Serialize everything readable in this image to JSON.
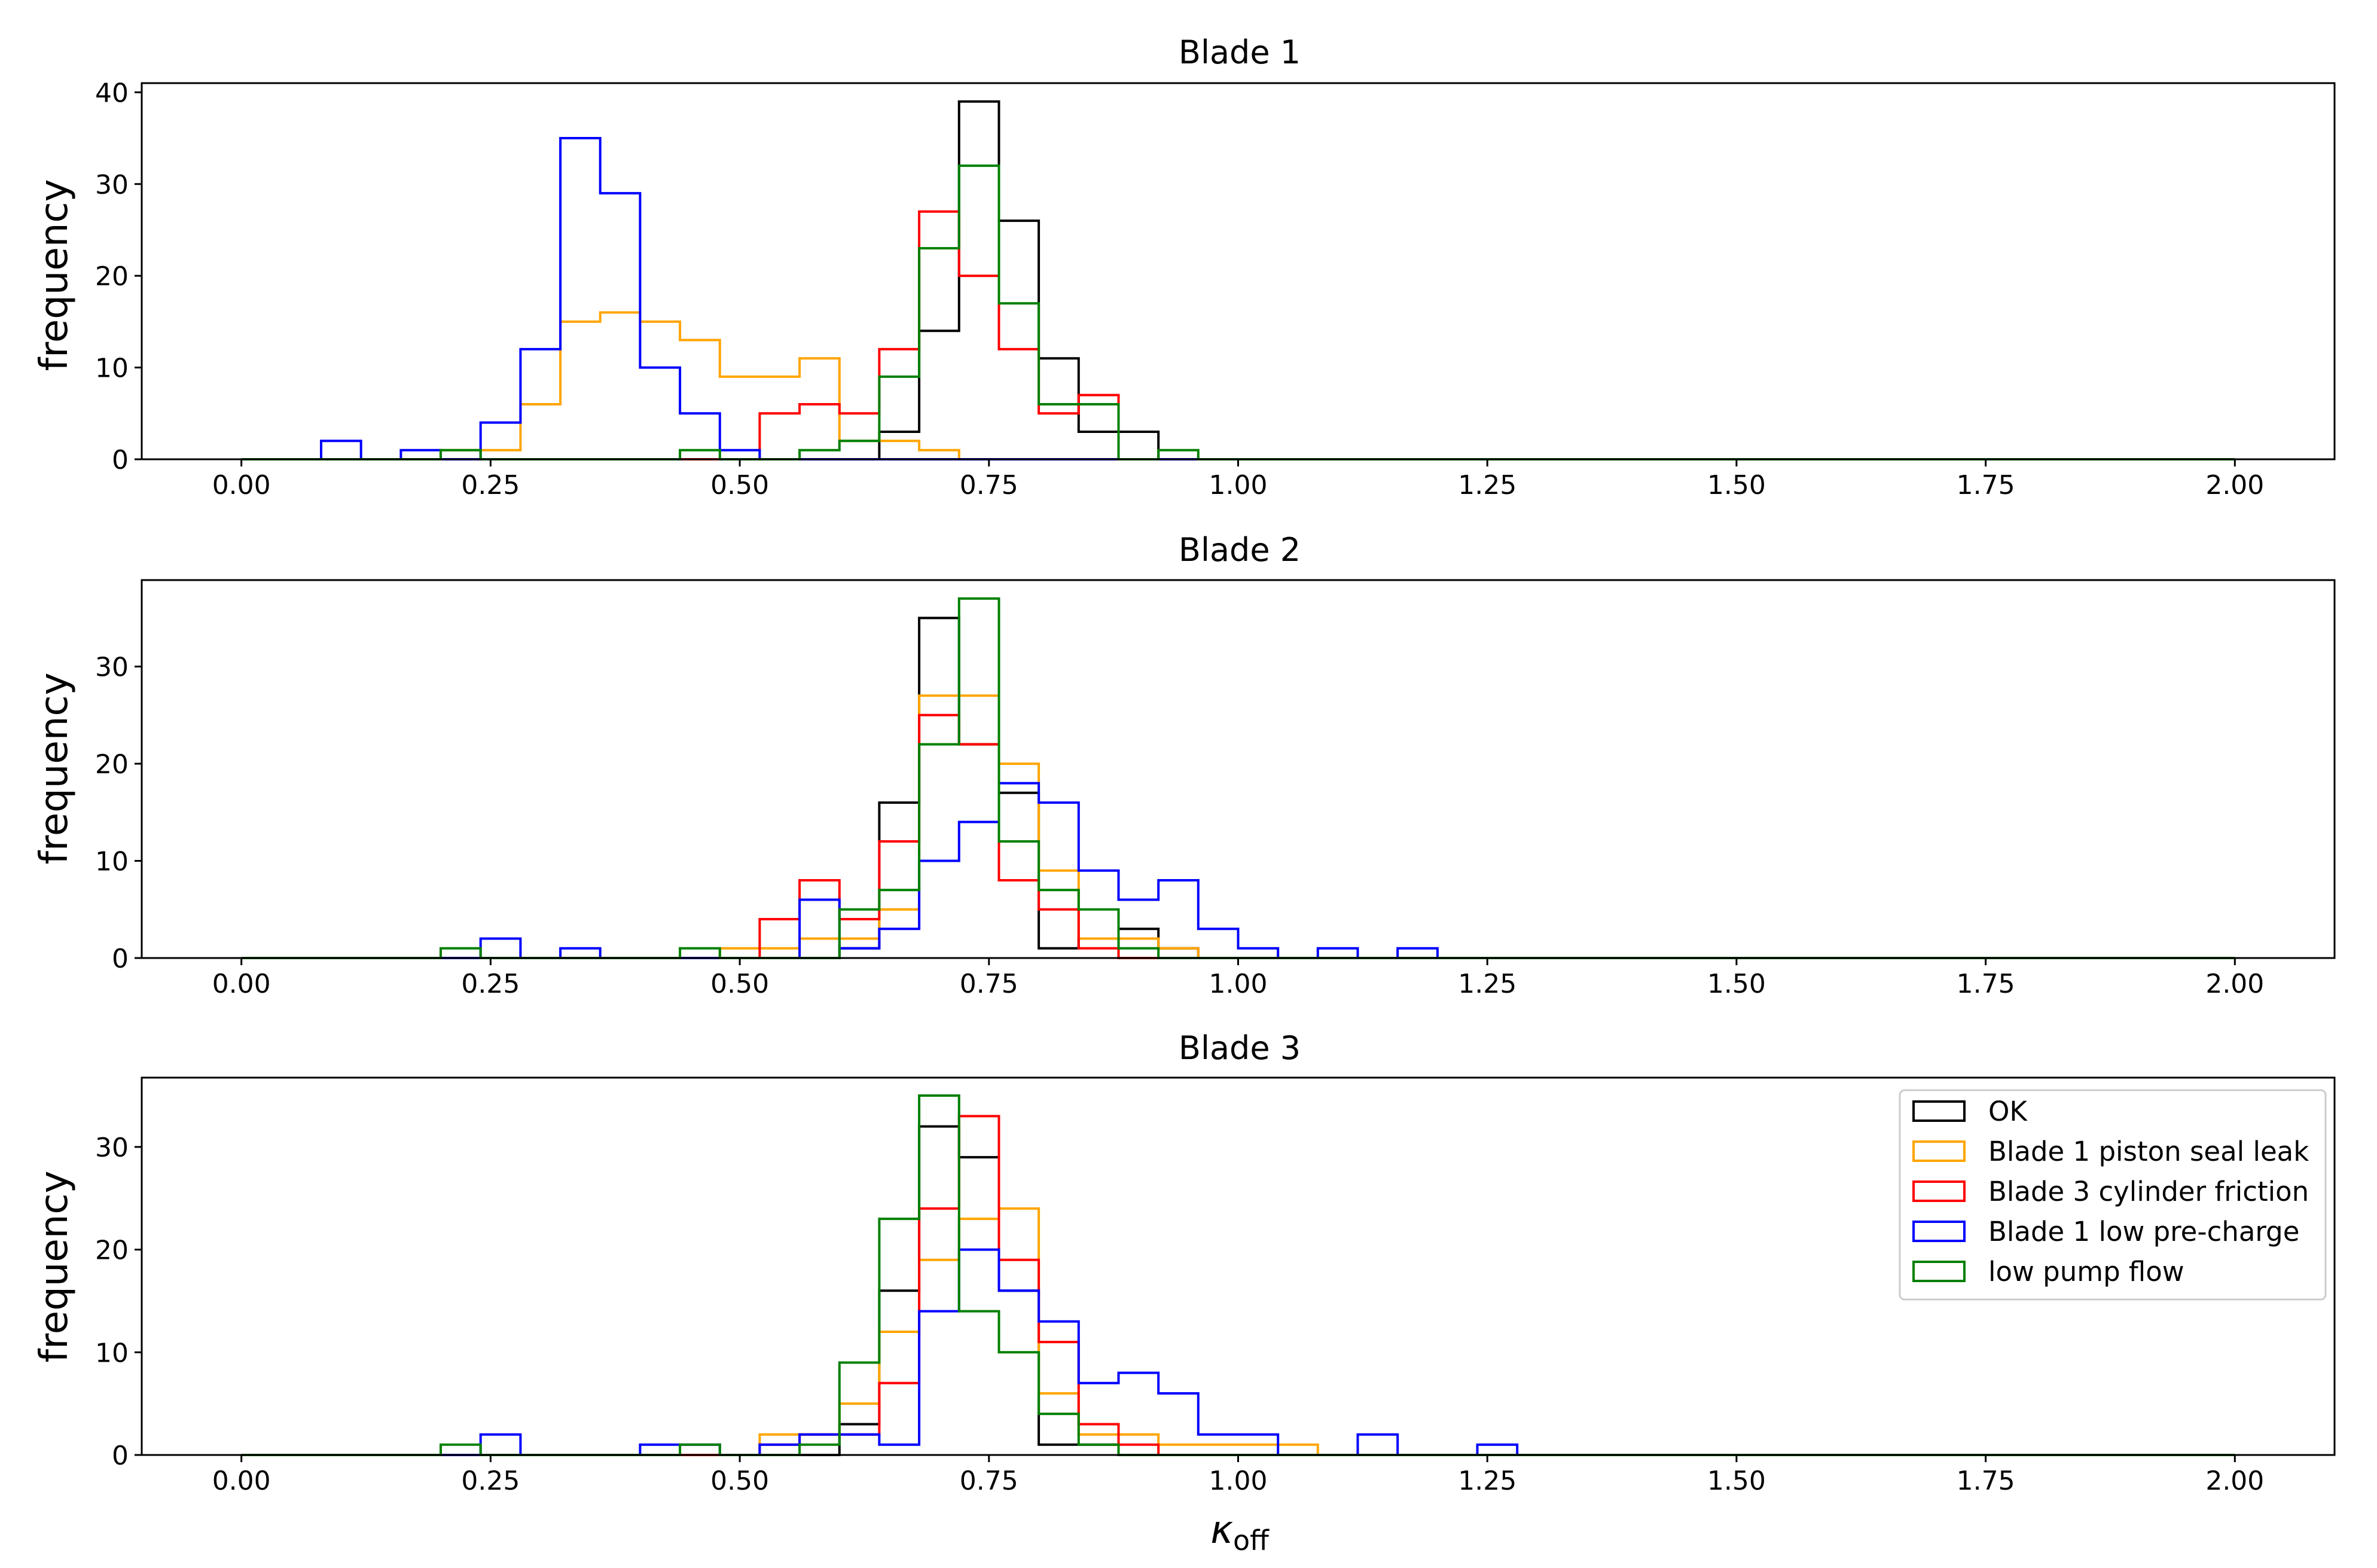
{
  "figure": {
    "xlabel_main": "κ",
    "xlabel_sub": "off"
  },
  "legend": [
    {
      "label": "OK",
      "color": "#000000"
    },
    {
      "label": "Blade 1 piston seal leak",
      "color": "#FFA500"
    },
    {
      "label": "Blade 3 cylinder friction",
      "color": "#FF0000"
    },
    {
      "label": "Blade 1 low pre-charge",
      "color": "#0000FF"
    },
    {
      "label": "low pump flow",
      "color": "#008000"
    }
  ],
  "chart_data": [
    {
      "type": "histogram",
      "title": "Blade 1",
      "ylabel": "frequency",
      "xlabel": "",
      "xlim": [
        -0.1,
        2.1
      ],
      "ylim": [
        0,
        41
      ],
      "yticks": [
        0,
        10,
        20,
        30,
        40
      ],
      "xticks": [
        "0.00",
        "0.25",
        "0.50",
        "0.75",
        "1.00",
        "1.25",
        "1.50",
        "1.75",
        "2.00"
      ],
      "bin_width": 0.04,
      "series": [
        {
          "name": "OK",
          "color": "#000000",
          "start": 0.0,
          "values": [
            0,
            0,
            0,
            0,
            0,
            0,
            0,
            0,
            0,
            0,
            0,
            0,
            0,
            0,
            0,
            0,
            3,
            14,
            39,
            26,
            11,
            3,
            3,
            0,
            0
          ]
        },
        {
          "name": "Blade 1 piston seal leak",
          "color": "#FFA500",
          "start": 0.2,
          "values": [
            1,
            1,
            6,
            15,
            16,
            15,
            13,
            9,
            9,
            11,
            2,
            2,
            1
          ]
        },
        {
          "name": "Blade 3 cylinder friction",
          "color": "#FF0000",
          "start": 0.52,
          "values": [
            5,
            6,
            5,
            12,
            27,
            20,
            12,
            5,
            7
          ]
        },
        {
          "name": "Blade 1 low pre-charge",
          "color": "#0000FF",
          "start": 0.08,
          "values": [
            2,
            0,
            1,
            0,
            4,
            12,
            35,
            29,
            10,
            5,
            1
          ]
        },
        {
          "name": "low pump flow",
          "color": "#008000",
          "start": 0.2,
          "values": [
            1,
            0,
            0,
            0,
            0,
            0,
            1,
            0,
            0,
            1,
            2,
            9,
            23,
            32,
            17,
            6,
            6,
            0,
            1
          ]
        }
      ]
    },
    {
      "type": "histogram",
      "title": "Blade 2",
      "ylabel": "frequency",
      "xlabel": "",
      "xlim": [
        -0.1,
        2.1
      ],
      "ylim": [
        0,
        38.9
      ],
      "yticks": [
        0,
        10,
        20,
        30
      ],
      "xticks": [
        "0.00",
        "0.25",
        "0.50",
        "0.75",
        "1.00",
        "1.25",
        "1.50",
        "1.75",
        "2.00"
      ],
      "bin_width": 0.04,
      "series": [
        {
          "name": "OK",
          "color": "#000000",
          "start": 0.6,
          "values": [
            1,
            16,
            35,
            22,
            17,
            1,
            2,
            3,
            1
          ]
        },
        {
          "name": "Blade 1 piston seal leak",
          "color": "#FFA500",
          "start": 0.48,
          "values": [
            1,
            1,
            2,
            2,
            5,
            27,
            27,
            20,
            9,
            2,
            2,
            1
          ]
        },
        {
          "name": "Blade 3 cylinder friction",
          "color": "#FF0000",
          "start": 0.48,
          "values": [
            0,
            4,
            8,
            4,
            12,
            25,
            22,
            8,
            5,
            1
          ]
        },
        {
          "name": "Blade 1 low pre-charge",
          "color": "#0000FF",
          "start": 0.2,
          "values": [
            0,
            2,
            0,
            1,
            0,
            0,
            0,
            0,
            0,
            6,
            1,
            3,
            10,
            14,
            18,
            16,
            9,
            6,
            8,
            3,
            1,
            0,
            1,
            0,
            1
          ]
        },
        {
          "name": "low pump flow",
          "color": "#008000",
          "start": 0.2,
          "values": [
            1,
            0,
            0,
            0,
            0,
            0,
            1,
            0,
            0,
            0,
            5,
            7,
            22,
            37,
            12,
            7,
            5,
            1
          ]
        }
      ]
    },
    {
      "type": "histogram",
      "title": "Blade 3",
      "ylabel": "frequency",
      "xlabel": "κ_off",
      "xlim": [
        -0.1,
        2.1
      ],
      "ylim": [
        0,
        36.75
      ],
      "yticks": [
        0,
        10,
        20,
        30
      ],
      "xticks": [
        "0.00",
        "0.25",
        "0.50",
        "0.75",
        "1.00",
        "1.25",
        "1.50",
        "1.75",
        "2.00"
      ],
      "bin_width": 0.04,
      "series": [
        {
          "name": "OK",
          "color": "#000000",
          "start": 0.6,
          "values": [
            3,
            16,
            32,
            29,
            16,
            1,
            1
          ]
        },
        {
          "name": "Blade 1 piston seal leak",
          "color": "#FFA500",
          "start": 0.52,
          "values": [
            2,
            2,
            5,
            12,
            19,
            23,
            24,
            6,
            2,
            2,
            1,
            1,
            1,
            1
          ]
        },
        {
          "name": "Blade 3 cylinder friction",
          "color": "#FF0000",
          "start": 0.52,
          "values": [
            1,
            2,
            2,
            7,
            24,
            33,
            19,
            11,
            3,
            1
          ]
        },
        {
          "name": "Blade 1 low pre-charge",
          "color": "#0000FF",
          "start": 0.24,
          "values": [
            2,
            0,
            0,
            0,
            1,
            1,
            0,
            1,
            2,
            2,
            1,
            14,
            20,
            16,
            13,
            7,
            8,
            6,
            2,
            2,
            0,
            0,
            2,
            0,
            0,
            1
          ]
        },
        {
          "name": "low pump flow",
          "color": "#008000",
          "start": 0.2,
          "values": [
            1,
            0,
            0,
            0,
            0,
            0,
            1,
            0,
            0,
            1,
            9,
            23,
            35,
            14,
            10,
            4,
            1
          ]
        }
      ]
    }
  ]
}
